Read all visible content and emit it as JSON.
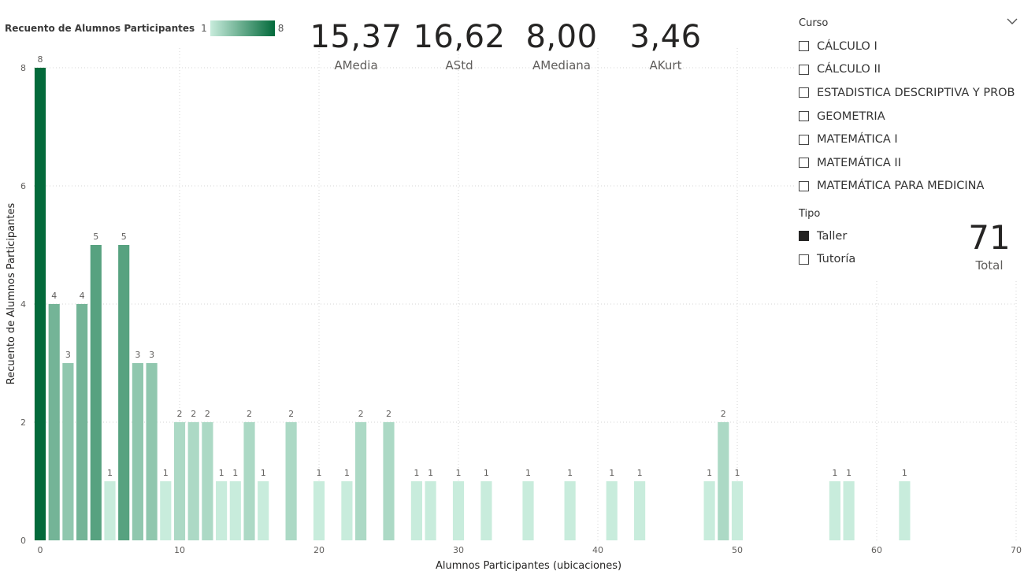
{
  "legend": {
    "title": "Recuento de Alumnos Participantes",
    "min": "1",
    "max": "8"
  },
  "kpis": [
    {
      "value": "15,37",
      "label": "AMedia"
    },
    {
      "value": "16,62",
      "label": "AStd"
    },
    {
      "value": "8,00",
      "label": "AMediana"
    },
    {
      "value": "3,46",
      "label": "AKurt"
    }
  ],
  "curso_slicer": {
    "title": "Curso",
    "items": [
      {
        "label": "CÁLCULO I",
        "checked": false
      },
      {
        "label": "CÁLCULO II",
        "checked": false
      },
      {
        "label": "ESTADISTICA DESCRIPTIVA Y PROB",
        "checked": false
      },
      {
        "label": "GEOMETRIA",
        "checked": false
      },
      {
        "label": "MATEMÁTICA I",
        "checked": false
      },
      {
        "label": "MATEMÁTICA II",
        "checked": false
      },
      {
        "label": "MATEMÁTICA PARA MEDICINA",
        "checked": false
      }
    ]
  },
  "tipo_slicer": {
    "title": "Tipo",
    "items": [
      {
        "label": "Taller",
        "checked": true
      },
      {
        "label": "Tutoría",
        "checked": false
      }
    ]
  },
  "total_card": {
    "value": "71",
    "label": "Total"
  },
  "colors": {
    "gradient_min": "#c8ecdc",
    "gradient_max": "#036a3b",
    "grid": "#d4d4d4",
    "axis_text": "#605e5c"
  },
  "chart_data": {
    "type": "bar",
    "xlabel": "Alumnos Participantes (ubicaciones)",
    "ylabel": "Recuento de Alumnos Participantes",
    "xlim": [
      0,
      70
    ],
    "ylim": [
      0,
      8
    ],
    "x_ticks": [
      0,
      10,
      20,
      30,
      40,
      50,
      60,
      70
    ],
    "y_ticks": [
      0,
      2,
      4,
      6,
      8
    ],
    "grid": true,
    "data_labels": true,
    "x": [
      0,
      1,
      2,
      3,
      4,
      5,
      6,
      7,
      8,
      9,
      10,
      11,
      12,
      13,
      14,
      15,
      16,
      18,
      20,
      22,
      23,
      25,
      27,
      28,
      30,
      32,
      35,
      38,
      41,
      43,
      48,
      49,
      50,
      57,
      58,
      62
    ],
    "values": [
      8,
      4,
      3,
      4,
      5,
      1,
      5,
      3,
      3,
      1,
      2,
      2,
      2,
      1,
      1,
      2,
      1,
      2,
      1,
      1,
      2,
      2,
      1,
      1,
      1,
      1,
      1,
      1,
      1,
      1,
      1,
      2,
      1,
      1,
      1,
      1
    ]
  }
}
